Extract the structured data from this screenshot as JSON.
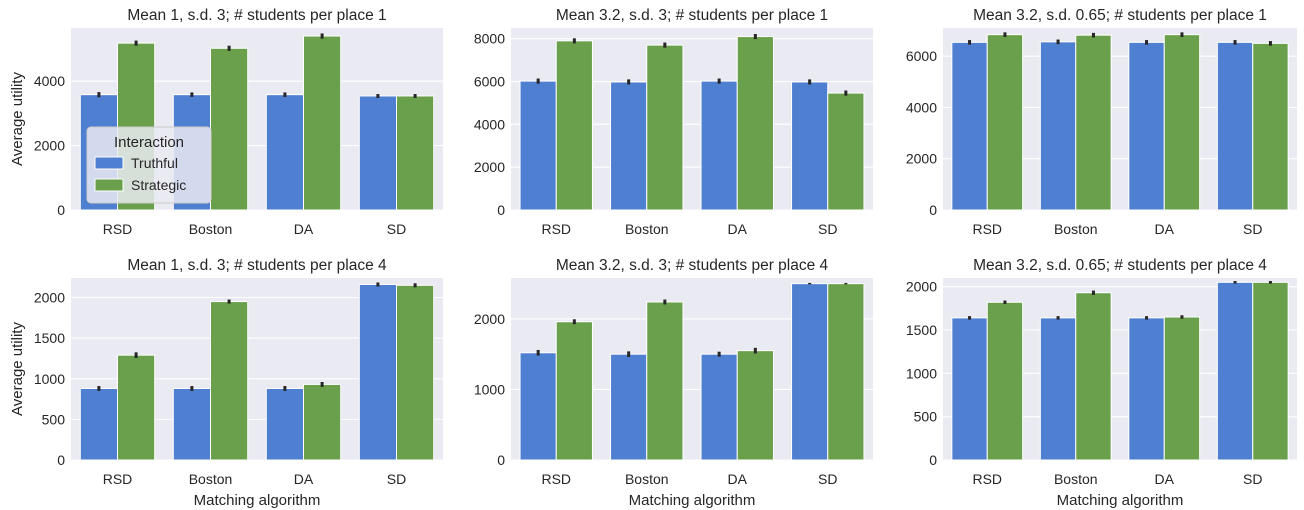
{
  "colors": {
    "Truthful": "#4f7fd1",
    "Strategic": "#6aa04b",
    "error_bar": "#262626",
    "panel_background": "#eaeaf2",
    "grid": "#ffffff"
  },
  "legend": {
    "title": "Interaction",
    "placement": "lower-left, first panel",
    "entries": [
      "Truthful",
      "Strategic"
    ]
  },
  "chart_data": [
    {
      "type": "bar",
      "title": "Mean 1, s.d. 3; # students per place 1",
      "xlabel": "",
      "ylabel": "Average utility",
      "categories": [
        "RSD",
        "Boston",
        "DA",
        "SD"
      ],
      "series": [
        {
          "name": "Truthful",
          "values": [
            3580,
            3580,
            3580,
            3540
          ],
          "err": [
            80,
            70,
            70,
            60
          ]
        },
        {
          "name": "Strategic",
          "values": [
            5180,
            5020,
            5400,
            3540
          ],
          "err": [
            80,
            80,
            80,
            60
          ]
        }
      ],
      "ylim": [
        0,
        5650
      ],
      "yticks": [
        0,
        2000,
        4000
      ],
      "grid": true
    },
    {
      "type": "bar",
      "title": "Mean 3.2, s.d. 3; # students per place 1",
      "xlabel": "",
      "ylabel": "",
      "categories": [
        "RSD",
        "Boston",
        "DA",
        "SD"
      ],
      "series": [
        {
          "name": "Truthful",
          "values": [
            6020,
            5980,
            6020,
            5980
          ],
          "err": [
            120,
            120,
            120,
            120
          ]
        },
        {
          "name": "Strategic",
          "values": [
            7900,
            7700,
            8100,
            5460
          ],
          "err": [
            120,
            120,
            120,
            120
          ]
        }
      ],
      "ylim": [
        0,
        8500
      ],
      "yticks": [
        0,
        2000,
        4000,
        6000,
        8000
      ],
      "grid": true
    },
    {
      "type": "bar",
      "title": "Mean 3.2, s.d. 0.65; # students per place 1",
      "xlabel": "",
      "ylabel": "",
      "categories": [
        "RSD",
        "Boston",
        "DA",
        "SD"
      ],
      "series": [
        {
          "name": "Truthful",
          "values": [
            6540,
            6560,
            6540,
            6540
          ],
          "err": [
            90,
            90,
            90,
            90
          ]
        },
        {
          "name": "Strategic",
          "values": [
            6840,
            6820,
            6840,
            6500
          ],
          "err": [
            90,
            90,
            90,
            90
          ]
        }
      ],
      "ylim": [
        0,
        7100
      ],
      "yticks": [
        0,
        2000,
        4000,
        6000
      ],
      "grid": true
    },
    {
      "type": "bar",
      "title": "Mean 1, s.d. 3; # students per place 4",
      "xlabel": "Matching algorithm",
      "ylabel": "Average utility",
      "categories": [
        "RSD",
        "Boston",
        "DA",
        "SD"
      ],
      "series": [
        {
          "name": "Truthful",
          "values": [
            880,
            880,
            880,
            2160
          ],
          "err": [
            30,
            30,
            30,
            25
          ]
        },
        {
          "name": "Strategic",
          "values": [
            1290,
            1950,
            930,
            2150
          ],
          "err": [
            35,
            25,
            30,
            25
          ]
        }
      ],
      "ylim": [
        0,
        2240
      ],
      "yticks": [
        0,
        500,
        1000,
        1500,
        2000
      ],
      "grid": true
    },
    {
      "type": "bar",
      "title": "Mean 3.2, s.d. 3; # students per place 4",
      "xlabel": "Matching algorithm",
      "ylabel": "",
      "categories": [
        "RSD",
        "Boston",
        "DA",
        "SD"
      ],
      "series": [
        {
          "name": "Truthful",
          "values": [
            1520,
            1500,
            1500,
            2500
          ],
          "err": [
            40,
            40,
            35,
            10
          ]
        },
        {
          "name": "Strategic",
          "values": [
            1960,
            2240,
            1550,
            2500
          ],
          "err": [
            35,
            35,
            40,
            10
          ]
        }
      ],
      "ylim": [
        0,
        2580
      ],
      "yticks": [
        0,
        1000,
        2000
      ],
      "grid": true
    },
    {
      "type": "bar",
      "title": "Mean 3.2, s.d. 0.65; # students per place 4",
      "xlabel": "Matching algorithm",
      "ylabel": "",
      "categories": [
        "RSD",
        "Boston",
        "DA",
        "SD"
      ],
      "series": [
        {
          "name": "Truthful",
          "values": [
            1640,
            1640,
            1640,
            2050
          ],
          "err": [
            20,
            20,
            20,
            15
          ]
        },
        {
          "name": "Strategic",
          "values": [
            1820,
            1930,
            1650,
            2050
          ],
          "err": [
            20,
            25,
            20,
            15
          ]
        }
      ],
      "ylim": [
        0,
        2100
      ],
      "yticks": [
        0,
        500,
        1000,
        1500,
        2000
      ],
      "grid": true
    }
  ]
}
